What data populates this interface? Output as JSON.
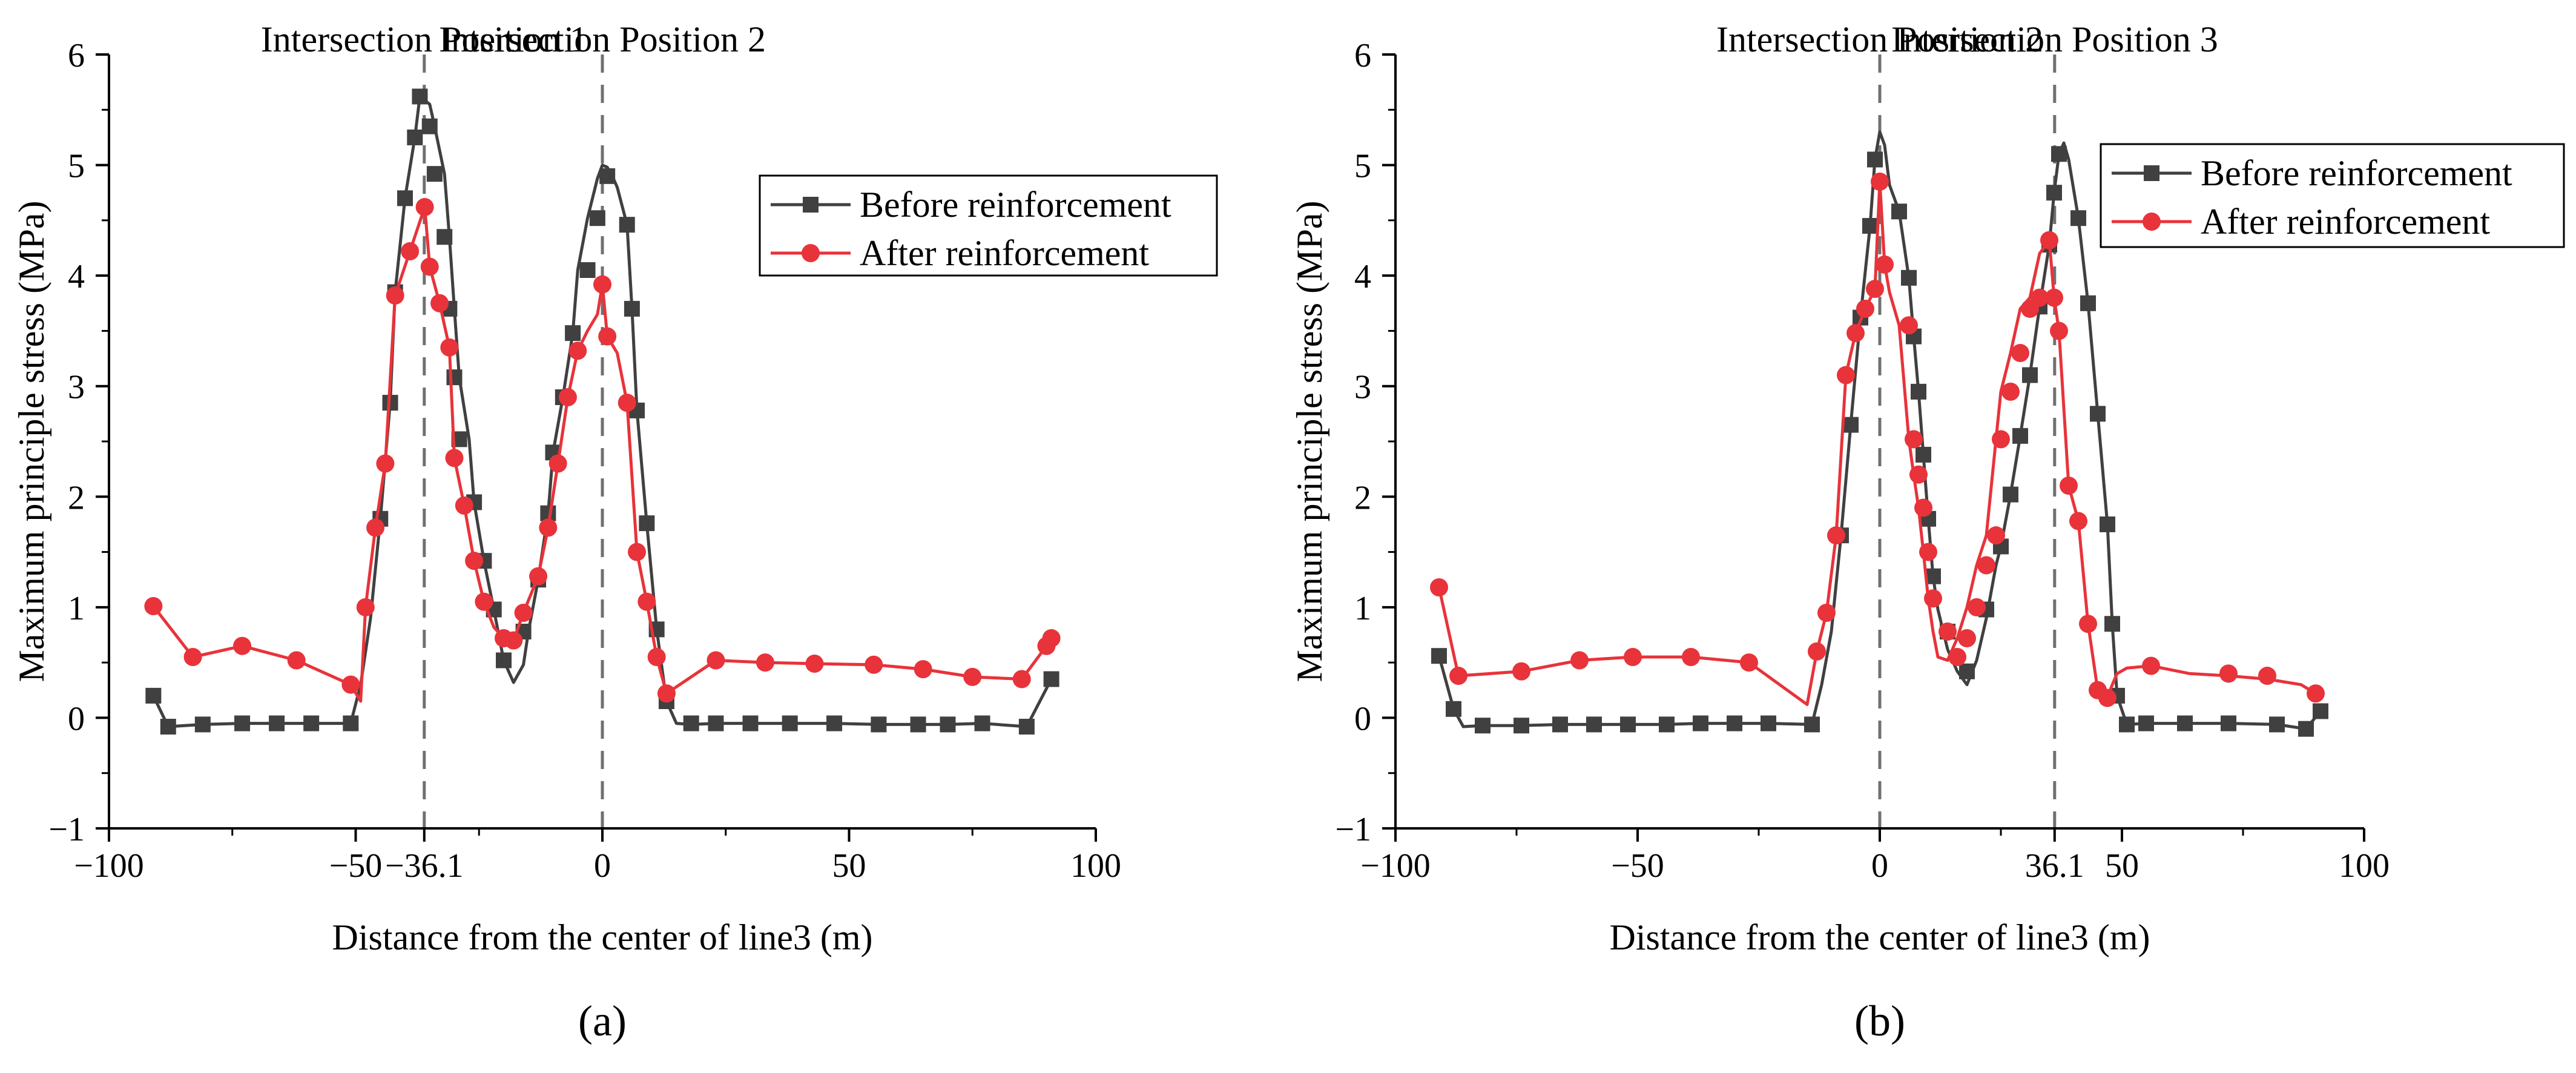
{
  "figure": {
    "panels": [
      "(a)",
      "(b)"
    ]
  },
  "colors": {
    "before": "#404040",
    "after": "#e8333a",
    "vline": "#707070",
    "axis": "#000000"
  },
  "chart_data": [
    {
      "type": "line",
      "panel_label": "(a)",
      "xlabel": "Distance from the center of line3 (m)",
      "ylabel": "Maximum principle stress (MPa)",
      "xlim": [
        -100,
        100
      ],
      "ylim": [
        -1,
        6
      ],
      "x_ticks": [
        -100,
        -50,
        -36.1,
        0,
        50,
        100
      ],
      "x_tick_labels": [
        "−100",
        "−50",
        "−36.1",
        "0",
        "50",
        "100"
      ],
      "y_ticks": [
        -1,
        0,
        1,
        2,
        3,
        4,
        5,
        6
      ],
      "y_tick_labels": [
        "−1",
        "0",
        "1",
        "2",
        "3",
        "4",
        "5",
        "6"
      ],
      "legend_position": "top-right",
      "annotations": [
        {
          "x": -36.1,
          "label": "Intersection Position 1"
        },
        {
          "x": 0,
          "label": "Intersection Position 2"
        }
      ],
      "series": [
        {
          "name": "Before reinforcement",
          "marker": "square",
          "x": [
            -91,
            -88,
            -81,
            -73,
            -66,
            -59,
            -51,
            -49,
            -47,
            -45,
            -43,
            -42,
            -40,
            -38,
            -37,
            -35,
            -34,
            -32,
            -31,
            -30,
            -29,
            -27,
            -26,
            -24,
            -22,
            -20,
            -18,
            -16,
            -15,
            -13,
            -11,
            -10,
            -8,
            -6,
            -5,
            -3,
            -1,
            0,
            1,
            2,
            3,
            5,
            6,
            7,
            9,
            11,
            13,
            15,
            18,
            23,
            30,
            38,
            47,
            56,
            64,
            70,
            77,
            86,
            91
          ],
          "y": [
            0.2,
            -0.08,
            -0.06,
            -0.05,
            -0.05,
            -0.05,
            -0.05,
            0.3,
            0.9,
            1.8,
            2.85,
            3.85,
            4.7,
            5.25,
            5.62,
            5.55,
            5.35,
            4.92,
            4.35,
            3.7,
            3.08,
            2.52,
            1.95,
            1.42,
            0.98,
            0.52,
            0.32,
            0.48,
            0.78,
            1.25,
            1.85,
            2.4,
            2.9,
            3.48,
            4.05,
            4.52,
            4.88,
            5.0,
            4.98,
            4.9,
            4.8,
            4.46,
            3.7,
            2.78,
            1.76,
            0.8,
            0.15,
            -0.05,
            -0.06,
            -0.05,
            -0.05,
            -0.05,
            -0.05,
            -0.06,
            -0.06,
            -0.06,
            -0.05,
            -0.08,
            0.35
          ],
          "markers_x": [
            -91,
            -88,
            -81,
            -73,
            -66,
            -59,
            -51,
            -45,
            -43,
            -42,
            -40,
            -38,
            -37,
            -35,
            -34,
            -32,
            -31,
            -30,
            -29,
            -26,
            -24,
            -22,
            -20,
            -16,
            -13,
            -11,
            -10,
            -8,
            -6,
            -3,
            -1,
            1,
            5,
            6,
            7,
            9,
            11,
            13,
            18,
            23,
            30,
            38,
            47,
            56,
            64,
            70,
            77,
            86,
            91
          ],
          "markers_y": [
            0.2,
            -0.08,
            -0.06,
            -0.05,
            -0.05,
            -0.05,
            -0.05,
            1.8,
            2.85,
            3.85,
            4.7,
            5.25,
            5.62,
            5.35,
            4.92,
            4.35,
            3.7,
            3.08,
            2.52,
            1.95,
            1.42,
            0.98,
            0.52,
            0.78,
            1.25,
            1.85,
            2.4,
            2.9,
            3.48,
            4.05,
            4.52,
            4.9,
            4.46,
            3.7,
            2.78,
            1.76,
            0.8,
            0.15,
            -0.05,
            -0.05,
            -0.05,
            -0.05,
            -0.05,
            -0.06,
            -0.06,
            -0.06,
            -0.05,
            -0.08,
            0.35
          ]
        },
        {
          "name": "After reinforcement",
          "marker": "circle",
          "x": [
            -91,
            -83,
            -73,
            -62,
            -51,
            -49,
            -48,
            -46,
            -44,
            -42,
            -39,
            -36,
            -35,
            -33,
            -31,
            -30,
            -28,
            -26,
            -24,
            -22,
            -20,
            -18,
            -16,
            -13,
            -11,
            -9,
            -7,
            -5,
            -3,
            -1,
            0,
            1,
            3,
            5,
            7,
            9,
            11,
            13,
            23,
            33,
            43,
            55,
            65,
            75,
            85,
            90,
            91
          ],
          "y": [
            1.01,
            0.55,
            0.65,
            0.52,
            0.3,
            0.15,
            1.0,
            1.72,
            2.3,
            3.82,
            4.22,
            4.62,
            4.08,
            3.75,
            3.35,
            2.35,
            1.92,
            1.42,
            1.05,
            0.82,
            0.72,
            0.7,
            0.95,
            1.28,
            1.72,
            2.3,
            2.9,
            3.32,
            3.5,
            3.65,
            3.92,
            3.45,
            3.3,
            2.85,
            1.5,
            1.05,
            0.55,
            0.22,
            0.52,
            0.5,
            0.49,
            0.48,
            0.44,
            0.37,
            0.35,
            0.65,
            0.72
          ],
          "markers_x": [
            -91,
            -83,
            -73,
            -62,
            -51,
            -48,
            -46,
            -44,
            -42,
            -39,
            -36,
            -35,
            -33,
            -31,
            -30,
            -28,
            -26,
            -24,
            -20,
            -18,
            -16,
            -13,
            -11,
            -9,
            -7,
            -5,
            0,
            1,
            5,
            7,
            9,
            11,
            13,
            23,
            33,
            43,
            55,
            65,
            75,
            85,
            90,
            91
          ],
          "markers_y": [
            1.01,
            0.55,
            0.65,
            0.52,
            0.3,
            1.0,
            1.72,
            2.3,
            3.82,
            4.22,
            4.62,
            4.08,
            3.75,
            3.35,
            2.35,
            1.92,
            1.42,
            1.05,
            0.72,
            0.7,
            0.95,
            1.28,
            1.72,
            2.3,
            2.9,
            3.32,
            3.92,
            3.45,
            2.85,
            1.5,
            1.05,
            0.55,
            0.22,
            0.52,
            0.5,
            0.49,
            0.48,
            0.44,
            0.37,
            0.35,
            0.65,
            0.72
          ]
        }
      ]
    },
    {
      "type": "line",
      "panel_label": "(b)",
      "xlabel": "Distance from the center of line3 (m)",
      "ylabel": "Maximum principle stress (MPa)",
      "xlim": [
        -100,
        100
      ],
      "ylim": [
        -1,
        6
      ],
      "x_ticks": [
        -100,
        -50,
        0,
        36.1,
        50,
        100
      ],
      "x_tick_labels": [
        "−100",
        "−50",
        "0",
        "36.1",
        "50",
        "100"
      ],
      "y_ticks": [
        -1,
        0,
        1,
        2,
        3,
        4,
        5,
        6
      ],
      "y_tick_labels": [
        "−1",
        "0",
        "1",
        "2",
        "3",
        "4",
        "5",
        "6"
      ],
      "legend_position": "top-right",
      "annotations": [
        {
          "x": 0,
          "label": "Intersection Position 2"
        },
        {
          "x": 36.1,
          "label": "Intersection Position 3"
        }
      ],
      "series": [
        {
          "name": "Before reinforcement",
          "marker": "square",
          "x": [
            -91,
            -88,
            -86,
            -82,
            -74,
            -66,
            -59,
            -52,
            -44,
            -37,
            -30,
            -23,
            -14,
            -12,
            -10,
            -8,
            -6,
            -4,
            -2,
            -1,
            0,
            1,
            2,
            4,
            6,
            7,
            8,
            9,
            10,
            11,
            12,
            14,
            16,
            18,
            20,
            22,
            24,
            25,
            27,
            29,
            31,
            33,
            35,
            36,
            37,
            38,
            39,
            41,
            43,
            45,
            47,
            48,
            49,
            51,
            55,
            63,
            72,
            82,
            88,
            91
          ],
          "y": [
            0.56,
            0.08,
            -0.08,
            -0.07,
            -0.07,
            -0.06,
            -0.06,
            -0.06,
            -0.06,
            -0.05,
            -0.05,
            -0.05,
            -0.06,
            0.3,
            0.78,
            1.65,
            2.65,
            3.62,
            4.45,
            5.05,
            5.3,
            5.18,
            4.82,
            4.58,
            3.98,
            3.45,
            2.95,
            2.38,
            1.8,
            1.28,
            0.98,
            0.62,
            0.42,
            0.3,
            0.52,
            0.9,
            1.38,
            1.55,
            2.02,
            2.55,
            3.1,
            3.72,
            4.28,
            4.75,
            5.1,
            5.2,
            5.05,
            4.52,
            3.75,
            2.75,
            1.75,
            0.85,
            0.2,
            -0.06,
            -0.05,
            -0.05,
            -0.05,
            -0.06,
            -0.1,
            0.06
          ],
          "markers_x": [
            -91,
            -88,
            -82,
            -74,
            -66,
            -59,
            -52,
            -44,
            -37,
            -30,
            -23,
            -14,
            -8,
            -6,
            -4,
            -2,
            -1,
            4,
            6,
            7,
            8,
            9,
            10,
            11,
            14,
            18,
            22,
            25,
            27,
            29,
            31,
            33,
            35,
            36,
            37,
            41,
            43,
            45,
            47,
            48,
            49,
            51,
            55,
            63,
            72,
            82,
            88,
            91
          ],
          "markers_y": [
            0.56,
            0.08,
            -0.07,
            -0.07,
            -0.06,
            -0.06,
            -0.06,
            -0.06,
            -0.05,
            -0.05,
            -0.05,
            -0.06,
            1.65,
            2.65,
            3.62,
            4.45,
            5.05,
            4.58,
            3.98,
            3.45,
            2.95,
            2.38,
            1.8,
            1.28,
            0.78,
            0.42,
            0.98,
            1.55,
            2.02,
            2.55,
            3.1,
            3.72,
            4.28,
            4.75,
            5.1,
            4.52,
            3.75,
            2.75,
            1.75,
            0.85,
            0.2,
            -0.06,
            -0.05,
            -0.05,
            -0.05,
            -0.06,
            -0.1,
            0.06
          ]
        },
        {
          "name": "After reinforcement",
          "marker": "circle",
          "x": [
            -91,
            -87,
            -74,
            -62,
            -51,
            -39,
            -27,
            -15,
            -13,
            -11,
            -9,
            -7,
            -5,
            -3,
            -1,
            0,
            1,
            2,
            4,
            6,
            7,
            8,
            9,
            10,
            11,
            12,
            14,
            16,
            18,
            20,
            22,
            24,
            25,
            27,
            29,
            31,
            33,
            35,
            36,
            37,
            39,
            41,
            43,
            45,
            47,
            48,
            49,
            51,
            56,
            64,
            72,
            80,
            87,
            90
          ],
          "y": [
            1.18,
            0.38,
            0.42,
            0.52,
            0.55,
            0.55,
            0.5,
            0.12,
            0.6,
            0.95,
            1.65,
            3.1,
            3.48,
            3.7,
            3.88,
            4.85,
            4.1,
            3.85,
            3.55,
            2.52,
            2.2,
            1.9,
            1.5,
            1.08,
            0.78,
            0.55,
            0.52,
            0.72,
            1.0,
            1.38,
            1.65,
            2.52,
            2.95,
            3.3,
            3.7,
            3.8,
            4.2,
            4.32,
            3.8,
            3.5,
            2.1,
            1.78,
            0.85,
            0.25,
            0.18,
            0.3,
            0.4,
            0.45,
            0.47,
            0.4,
            0.38,
            0.35,
            0.3,
            0.22
          ],
          "markers_x": [
            -91,
            -87,
            -74,
            -62,
            -51,
            -39,
            -27,
            -13,
            -11,
            -9,
            -7,
            -5,
            -3,
            -1,
            0,
            1,
            6,
            7,
            8,
            9,
            10,
            11,
            14,
            16,
            18,
            20,
            22,
            24,
            25,
            27,
            29,
            31,
            33,
            35,
            36,
            37,
            39,
            41,
            43,
            45,
            47,
            56,
            72,
            80,
            90
          ],
          "markers_y": [
            1.18,
            0.38,
            0.42,
            0.52,
            0.55,
            0.55,
            0.5,
            0.6,
            0.95,
            1.65,
            3.1,
            3.48,
            3.7,
            3.88,
            4.85,
            4.1,
            3.55,
            2.52,
            2.2,
            1.9,
            1.5,
            1.08,
            0.78,
            0.55,
            0.72,
            1.0,
            1.38,
            1.65,
            2.52,
            2.95,
            3.3,
            3.7,
            3.8,
            4.32,
            3.8,
            3.5,
            2.1,
            1.78,
            0.85,
            0.25,
            0.18,
            0.47,
            0.4,
            0.38,
            0.22
          ]
        }
      ]
    }
  ]
}
